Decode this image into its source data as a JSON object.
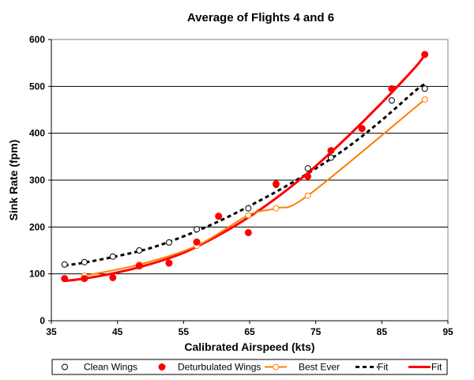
{
  "chart_data": {
    "type": "scatter",
    "title": "Average of Flights 4 and 6",
    "xlabel": "Calibrated Airspeed (kts)",
    "ylabel": "Sink Rate (fpm)",
    "xlim": [
      35,
      95
    ],
    "ylim": [
      0,
      600
    ],
    "xticks": [
      35,
      45,
      55,
      65,
      75,
      85,
      95
    ],
    "yticks": [
      0,
      100,
      200,
      300,
      400,
      500,
      600
    ],
    "grid": "horizontal",
    "legend_position": "bottom",
    "series": [
      {
        "name": "Clean Wings",
        "kind": "markers",
        "marker": "open-circle",
        "color": "#000000",
        "x": [
          37,
          40,
          44.3,
          48.3,
          52.8,
          57,
          64.8,
          69,
          73.8,
          77.3,
          82,
          86.5,
          91.5
        ],
        "y": [
          120,
          125,
          137,
          150,
          167,
          195,
          240,
          290,
          325,
          348,
          410,
          470,
          495
        ]
      },
      {
        "name": "Deturbulated Wings",
        "kind": "markers",
        "marker": "filled-circle",
        "color": "#ff0000",
        "x": [
          37,
          40,
          44.3,
          48.3,
          52.8,
          57,
          60.3,
          64.8,
          69,
          73.8,
          77.3,
          82,
          86.5,
          91.5
        ],
        "y": [
          90,
          90,
          92,
          117,
          123,
          168,
          223,
          188,
          292,
          308,
          363,
          410,
          495,
          568
        ]
      },
      {
        "name": "Best Ever",
        "kind": "line-markers",
        "marker": "open-circle",
        "color": "#ff7f00",
        "x": [
          40,
          48.3,
          57,
          64.8,
          69,
          73.8,
          91.5
        ],
        "y": [
          96,
          120,
          160,
          225,
          240,
          267,
          472
        ]
      },
      {
        "name": "Fit",
        "kind": "fit",
        "style": "dashed",
        "color": "#000000",
        "x": [
          37,
          40,
          45,
          50,
          55,
          60,
          65,
          70,
          75,
          80,
          85,
          90,
          91.5
        ],
        "y": [
          118,
          124,
          138,
          155,
          180,
          210,
          245,
          283,
          325,
          372,
          428,
          490,
          505
        ]
      },
      {
        "name": "Fit",
        "kind": "fit",
        "style": "solid",
        "color": "#ff0000",
        "x": [
          37,
          40,
          45,
          50,
          55,
          60,
          65,
          70,
          75,
          80,
          85,
          90,
          91.5
        ],
        "y": [
          85,
          90,
          103,
          121,
          145,
          180,
          222,
          272,
          330,
          395,
          465,
          540,
          567
        ]
      }
    ]
  }
}
